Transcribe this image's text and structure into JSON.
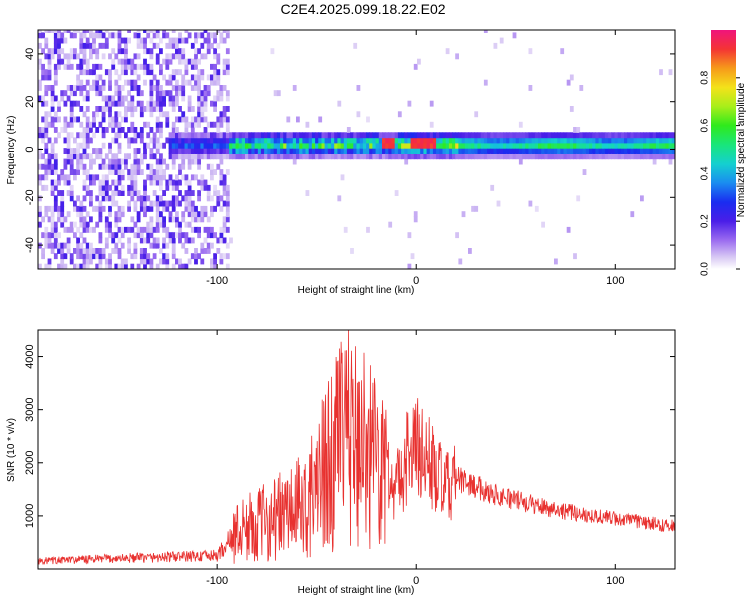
{
  "title": "C2E4.2025.099.18.22.E02",
  "chart_data": [
    {
      "type": "heatmap",
      "xlabel": "Height of straight line (km)",
      "ylabel": "Frequency (Hz)",
      "xlim": [
        -190,
        130
      ],
      "ylim": [
        -50,
        50
      ],
      "x_ticks": [
        -100,
        0,
        100
      ],
      "y_ticks": [
        -40,
        -20,
        0,
        20,
        40
      ],
      "x_tick_labels": [
        "-100",
        "0",
        "100"
      ],
      "y_tick_labels": [
        "-40",
        "-20",
        "0",
        "20",
        "40"
      ],
      "colorbar": {
        "label": "Normalized spectral amplitude",
        "range": [
          0,
          1
        ],
        "ticks": [
          0.0,
          0.2,
          0.4,
          0.6,
          0.8
        ],
        "tick_labels": [
          "0.0",
          "0.2",
          "0.4",
          "0.6",
          "0.8"
        ]
      },
      "features": {
        "noise_region_km": [
          -190,
          -95
        ],
        "signal_band_center_hz": 1,
        "signal_band_halfwidth_hz": 4,
        "peak_locations_km": [
          -15,
          0,
          5
        ]
      }
    },
    {
      "type": "line",
      "xlabel": "Height of straight line (km)",
      "ylabel": "SNR (10 * v/v)",
      "xlim": [
        -190,
        130
      ],
      "ylim": [
        0,
        4500
      ],
      "x_ticks": [
        -100,
        0,
        100
      ],
      "y_ticks": [
        1000,
        2000,
        3000,
        4000
      ],
      "x_tick_labels": [
        "-100",
        "0",
        "100"
      ],
      "y_tick_labels": [
        "1000",
        "2000",
        "3000",
        "4000"
      ],
      "series_color": "#e8312f",
      "x": [
        -190,
        -150,
        -100,
        -90,
        -75,
        -55,
        -45,
        -40,
        -35,
        -25,
        -15,
        -10,
        -5,
        0,
        5,
        10,
        15,
        20,
        30,
        40,
        60,
        80,
        100,
        120,
        130
      ],
      "values": [
        150,
        200,
        250,
        700,
        900,
        1200,
        1900,
        2200,
        2500,
        2300,
        1800,
        1600,
        2100,
        2300,
        2100,
        1800,
        1500,
        1700,
        1550,
        1400,
        1200,
        1050,
        950,
        850,
        800
      ]
    }
  ]
}
